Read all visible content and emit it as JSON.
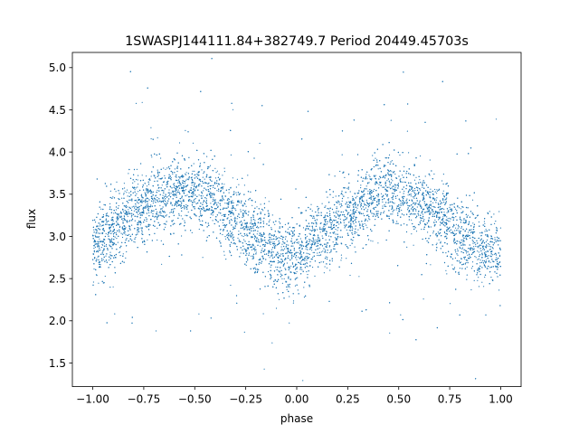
{
  "chart_data": {
    "type": "scatter",
    "title": "1SWASPJ144111.84+382749.7 Period 20449.45703s",
    "xlabel": "phase",
    "ylabel": "flux",
    "xlim": [
      -1.1,
      1.1
    ],
    "ylim": [
      1.22,
      5.18
    ],
    "x_ticks": [
      -1.0,
      -0.75,
      -0.5,
      -0.25,
      0.0,
      0.25,
      0.5,
      0.75,
      1.0
    ],
    "x_tick_labels": [
      "−1.00",
      "−0.75",
      "−0.50",
      "−0.25",
      "0.00",
      "0.25",
      "0.50",
      "0.75",
      "1.00"
    ],
    "y_ticks": [
      1.5,
      2.0,
      2.5,
      3.0,
      3.5,
      4.0,
      4.5,
      5.0
    ],
    "y_tick_labels": [
      "1.5",
      "2.0",
      "2.5",
      "3.0",
      "3.5",
      "4.0",
      "4.5",
      "5.0"
    ],
    "grid": false,
    "legend": "none",
    "point_color": "#1f77b4",
    "series": [
      {
        "x": [
          -1.0,
          -0.9,
          -0.8,
          -0.7,
          -0.6,
          -0.55,
          -0.5,
          -0.4,
          -0.3,
          -0.2,
          -0.1,
          -0.05,
          0.0,
          0.1,
          0.2,
          0.3,
          0.4,
          0.45,
          0.5,
          0.6,
          0.7,
          0.8,
          0.9,
          1.0
        ],
        "y": [
          2.85,
          3.05,
          3.3,
          3.45,
          3.52,
          3.55,
          3.5,
          3.4,
          3.2,
          3.0,
          2.8,
          2.75,
          2.78,
          2.95,
          3.15,
          3.35,
          3.5,
          3.55,
          3.5,
          3.4,
          3.25,
          3.0,
          2.85,
          2.82
        ]
      }
    ],
    "scatter_spread": 0.22
  }
}
